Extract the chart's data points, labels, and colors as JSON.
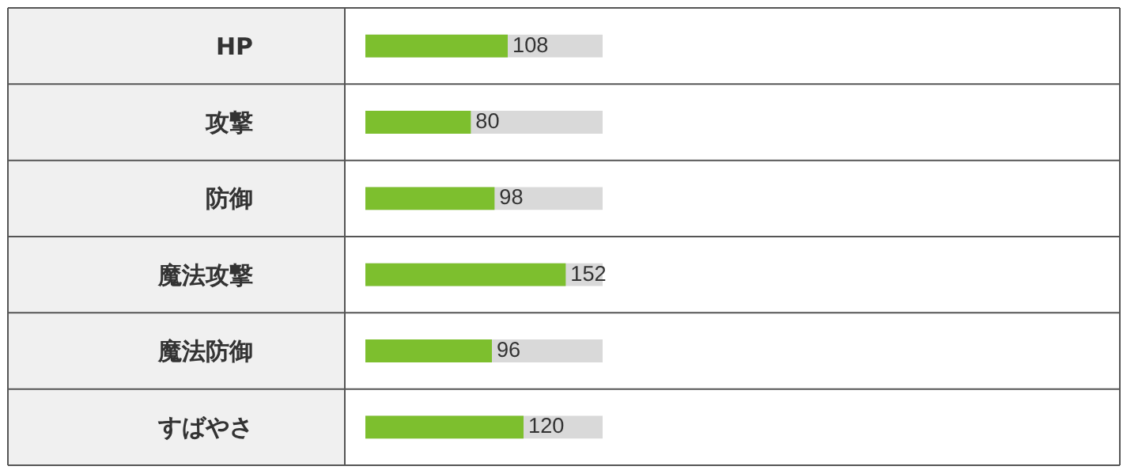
{
  "chart_data": {
    "type": "bar",
    "orientation": "horizontal",
    "categories": [
      "HP",
      "攻撃",
      "防御",
      "魔法攻撃",
      "魔法防御",
      "すばやさ"
    ],
    "values": [
      108,
      80,
      98,
      152,
      96,
      120
    ],
    "color": "#7dbf2e",
    "xlim": [
      0,
      180
    ],
    "tick_labels": "y",
    "data_labels": true,
    "grid": false,
    "legend": false
  }
}
